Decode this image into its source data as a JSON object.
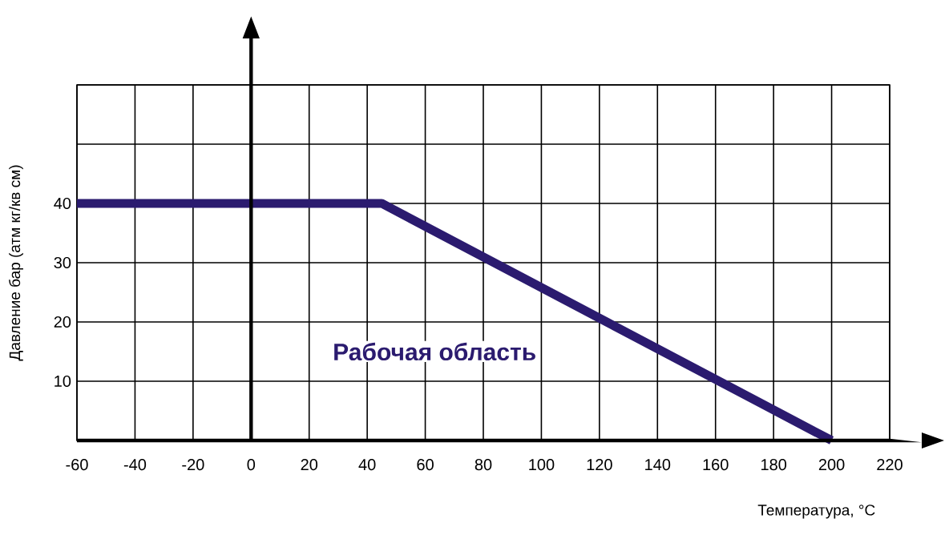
{
  "chart_data": {
    "type": "line",
    "xlabel": "Температура, °C",
    "ylabel": "Давление бар (атм кг/кв см)",
    "annotations": [
      "Рабочая область"
    ],
    "x": [
      -60,
      45,
      200
    ],
    "series": [
      {
        "color": "#2b1b6f",
        "values": [
          40,
          40,
          0
        ]
      }
    ],
    "xlim": [
      -60,
      220
    ],
    "ylim": [
      0,
      60
    ],
    "xticks": [
      -60,
      -40,
      -20,
      0,
      20,
      40,
      60,
      80,
      100,
      120,
      140,
      160,
      180,
      200,
      220
    ],
    "yticks": [
      {
        "value": 0,
        "label": null
      },
      10,
      20,
      30,
      40,
      {
        "value": 50,
        "label": null
      },
      {
        "value": 60,
        "label": null
      }
    ],
    "grid": true,
    "line_style": "solid",
    "marker": "none"
  }
}
